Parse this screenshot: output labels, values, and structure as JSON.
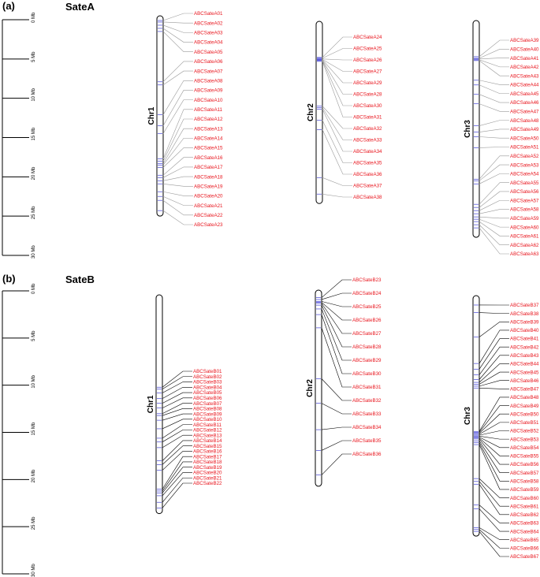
{
  "colors": {
    "gene_text": "#e8141c",
    "marker": "#5a5adc",
    "outline": "#000000",
    "connector_a": "#9a9a9a",
    "connector_b": "#000000"
  },
  "panels": [
    {
      "tag": "(a)",
      "title": "SateA",
      "scale": {
        "max": 30,
        "ticks": [
          "0 Mb",
          "5 Mb",
          "10 Mb",
          "15 Mb",
          "20 Mb",
          "25 Mb",
          "30 Mb"
        ]
      },
      "chromosomes": [
        {
          "name": "Chr1",
          "length": 25.5,
          "genes": [
            {
              "label": "ABCSateA01",
              "pos": 0.6
            },
            {
              "label": "ABCSateA02",
              "pos": 0.8
            },
            {
              "label": "ABCSateA03",
              "pos": 1.2
            },
            {
              "label": "ABCSateA04",
              "pos": 1.6
            },
            {
              "label": "ABCSateA05",
              "pos": 2.0
            },
            {
              "label": "ABCSateA06",
              "pos": 8.4
            },
            {
              "label": "ABCSateA07",
              "pos": 8.8
            },
            {
              "label": "ABCSateA08",
              "pos": 12.6
            },
            {
              "label": "ABCSateA09",
              "pos": 14.0
            },
            {
              "label": "ABCSateA10",
              "pos": 15.0
            },
            {
              "label": "ABCSateA11",
              "pos": 18.2
            },
            {
              "label": "ABCSateA12",
              "pos": 18.5
            },
            {
              "label": "ABCSateA13",
              "pos": 18.8
            },
            {
              "label": "ABCSateA14",
              "pos": 19.0
            },
            {
              "label": "ABCSateA15",
              "pos": 19.3
            },
            {
              "label": "ABCSateA16",
              "pos": 20.3
            },
            {
              "label": "ABCSateA17",
              "pos": 20.6
            },
            {
              "label": "ABCSateA18",
              "pos": 21.0
            },
            {
              "label": "ABCSateA19",
              "pos": 21.4
            },
            {
              "label": "ABCSateA20",
              "pos": 22.4
            },
            {
              "label": "ABCSateA21",
              "pos": 23.0
            },
            {
              "label": "ABCSateA22",
              "pos": 23.5
            },
            {
              "label": "ABCSateA23",
              "pos": 24.8
            }
          ]
        },
        {
          "name": "Chr2",
          "length": 23.2,
          "genes": [
            {
              "label": "ABCSateA24",
              "pos": 4.6
            },
            {
              "label": "ABCSateA25",
              "pos": 4.7
            },
            {
              "label": "ABCSateA26",
              "pos": 4.8
            },
            {
              "label": "ABCSateA27",
              "pos": 4.85
            },
            {
              "label": "ABCSateA29",
              "pos": 4.9
            },
            {
              "label": "ABCSateA28",
              "pos": 4.95
            },
            {
              "label": "ABCSateA30",
              "pos": 5.0
            },
            {
              "label": "ABCSateA31",
              "pos": 5.1
            },
            {
              "label": "ABCSateA32",
              "pos": 10.8
            },
            {
              "label": "ABCSateA33",
              "pos": 11.0
            },
            {
              "label": "ABCSateA34",
              "pos": 11.2
            },
            {
              "label": "ABCSateA35",
              "pos": 12.6
            },
            {
              "label": "ABCSateA36",
              "pos": 13.8
            },
            {
              "label": "ABCSateA37",
              "pos": 19.9
            },
            {
              "label": "ABCSateA38",
              "pos": 22.0
            }
          ]
        },
        {
          "name": "Chr3",
          "length": 27.6,
          "genes": [
            {
              "label": "ABCSateA39",
              "pos": 4.6
            },
            {
              "label": "ABCSateA40",
              "pos": 4.8
            },
            {
              "label": "ABCSateA41",
              "pos": 4.9
            },
            {
              "label": "ABCSateA42",
              "pos": 5.0
            },
            {
              "label": "ABCSateA43",
              "pos": 5.1
            },
            {
              "label": "ABCSateA44",
              "pos": 7.6
            },
            {
              "label": "ABCSateA45",
              "pos": 8.2
            },
            {
              "label": "ABCSateA46",
              "pos": 9.4
            },
            {
              "label": "ABCSateA47",
              "pos": 10.6
            },
            {
              "label": "ABCSateA48",
              "pos": 13.4
            },
            {
              "label": "ABCSateA49",
              "pos": 14.2
            },
            {
              "label": "ABCSateA50",
              "pos": 14.8
            },
            {
              "label": "ABCSateA51",
              "pos": 16.2
            },
            {
              "label": "ABCSateA52",
              "pos": 20.2
            },
            {
              "label": "ABCSateA53",
              "pos": 20.4
            },
            {
              "label": "ABCSateA54",
              "pos": 20.8
            },
            {
              "label": "ABCSateA55",
              "pos": 23.4
            },
            {
              "label": "ABCSateA56",
              "pos": 23.8
            },
            {
              "label": "ABCSateA57",
              "pos": 24.2
            },
            {
              "label": "ABCSateA58",
              "pos": 24.6
            },
            {
              "label": "ABCSateA59",
              "pos": 25.0
            },
            {
              "label": "ABCSateA60",
              "pos": 25.3
            },
            {
              "label": "ABCSateA61",
              "pos": 25.6
            },
            {
              "label": "ABCSateA62",
              "pos": 26.0
            },
            {
              "label": "ABCSateA63",
              "pos": 26.4
            }
          ]
        }
      ]
    },
    {
      "tag": "(b)",
      "title": "SateB",
      "scale": {
        "max": 30,
        "ticks": [
          "0 Mb",
          "5 Mb",
          "10 Mb",
          "15 Mb",
          "20 Mb",
          "25 Mb",
          "30 Mb"
        ]
      },
      "chromosomes": [
        {
          "name": "Chr1",
          "length": 23.2,
          "genes": [
            {
              "label": "ABCSateB01",
              "pos": 9.8
            },
            {
              "label": "ABCSateB02",
              "pos": 10.0
            },
            {
              "label": "ABCSateB03",
              "pos": 10.4
            },
            {
              "label": "ABCSateB04",
              "pos": 11.0
            },
            {
              "label": "ABCSateB05",
              "pos": 11.5
            },
            {
              "label": "ABCSateB06",
              "pos": 12.0
            },
            {
              "label": "ABCSateB07",
              "pos": 12.6
            },
            {
              "label": "ABCSateB08",
              "pos": 12.8
            },
            {
              "label": "ABCSateB09",
              "pos": 13.3
            },
            {
              "label": "ABCSateB10",
              "pos": 14.2
            },
            {
              "label": "ABCSateB11",
              "pos": 15.2
            },
            {
              "label": "ABCSateB12",
              "pos": 15.6
            },
            {
              "label": "ABCSateB13",
              "pos": 16.2
            },
            {
              "label": "ABCSateB14",
              "pos": 17.6
            },
            {
              "label": "ABCSateB15",
              "pos": 18.0
            },
            {
              "label": "ABCSateB16",
              "pos": 18.6
            },
            {
              "label": "ABCSateB17",
              "pos": 20.6
            },
            {
              "label": "ABCSateB18",
              "pos": 20.8
            },
            {
              "label": "ABCSateB19",
              "pos": 21.0
            },
            {
              "label": "ABCSateB20",
              "pos": 21.3
            },
            {
              "label": "ABCSateB21",
              "pos": 22.0
            },
            {
              "label": "ABCSateB22",
              "pos": 22.6
            }
          ]
        },
        {
          "name": "Chr2",
          "length": 20.8,
          "genes": [
            {
              "label": "ABCSateB23",
              "pos": 0.8
            },
            {
              "label": "ABCSateB24",
              "pos": 1.0
            },
            {
              "label": "ABCSateB25",
              "pos": 1.2
            },
            {
              "label": "ABCSateB26",
              "pos": 1.3
            },
            {
              "label": "ABCSateB27",
              "pos": 1.4
            },
            {
              "label": "ABCSateB28",
              "pos": 1.6
            },
            {
              "label": "ABCSateB29",
              "pos": 2.0
            },
            {
              "label": "ABCSateB30",
              "pos": 2.6
            },
            {
              "label": "ABCSateB31",
              "pos": 4.0
            },
            {
              "label": "ABCSateB32",
              "pos": 9.4
            },
            {
              "label": "ABCSateB33",
              "pos": 12.0
            },
            {
              "label": "ABCSateB34",
              "pos": 14.8
            },
            {
              "label": "ABCSateB35",
              "pos": 17.0
            },
            {
              "label": "ABCSateB36",
              "pos": 19.6
            }
          ]
        },
        {
          "name": "Chr3",
          "length": 25.5,
          "genes": [
            {
              "label": "ABCSateB37",
              "pos": 1.0
            },
            {
              "label": "ABCSateB38",
              "pos": 1.8
            },
            {
              "label": "ABCSateB39",
              "pos": 4.4
            },
            {
              "label": "ABCSateB40",
              "pos": 7.2
            },
            {
              "label": "ABCSateB41",
              "pos": 7.8
            },
            {
              "label": "ABCSateB42",
              "pos": 8.4
            },
            {
              "label": "ABCSateB43",
              "pos": 8.9
            },
            {
              "label": "ABCSateB44",
              "pos": 9.2
            },
            {
              "label": "ABCSateB45",
              "pos": 9.4
            },
            {
              "label": "ABCSateB46",
              "pos": 9.6
            },
            {
              "label": "ABCSateB47",
              "pos": 9.8
            },
            {
              "label": "ABCSateB48",
              "pos": 14.4
            },
            {
              "label": "ABCSateB49",
              "pos": 14.5
            },
            {
              "label": "ABCSateB50",
              "pos": 14.6
            },
            {
              "label": "ABCSateB51",
              "pos": 14.7
            },
            {
              "label": "ABCSateB52",
              "pos": 14.8
            },
            {
              "label": "ABCSateB53",
              "pos": 14.9
            },
            {
              "label": "ABCSateB54",
              "pos": 15.0
            },
            {
              "label": "ABCSateB55",
              "pos": 15.1
            },
            {
              "label": "ABCSateB56",
              "pos": 15.2
            },
            {
              "label": "ABCSateB57",
              "pos": 15.4
            },
            {
              "label": "ABCSateB58",
              "pos": 15.6
            },
            {
              "label": "ABCSateB59",
              "pos": 15.8
            },
            {
              "label": "ABCSateB60",
              "pos": 19.4
            },
            {
              "label": "ABCSateB61",
              "pos": 19.7
            },
            {
              "label": "ABCSateB62",
              "pos": 20.0
            },
            {
              "label": "ABCSateB63",
              "pos": 22.2
            },
            {
              "label": "ABCSateB64",
              "pos": 22.6
            },
            {
              "label": "ABCSateB65",
              "pos": 24.6
            },
            {
              "label": "ABCSateB66",
              "pos": 24.8
            },
            {
              "label": "ABCSateB67",
              "pos": 25.0
            }
          ]
        }
      ]
    }
  ]
}
